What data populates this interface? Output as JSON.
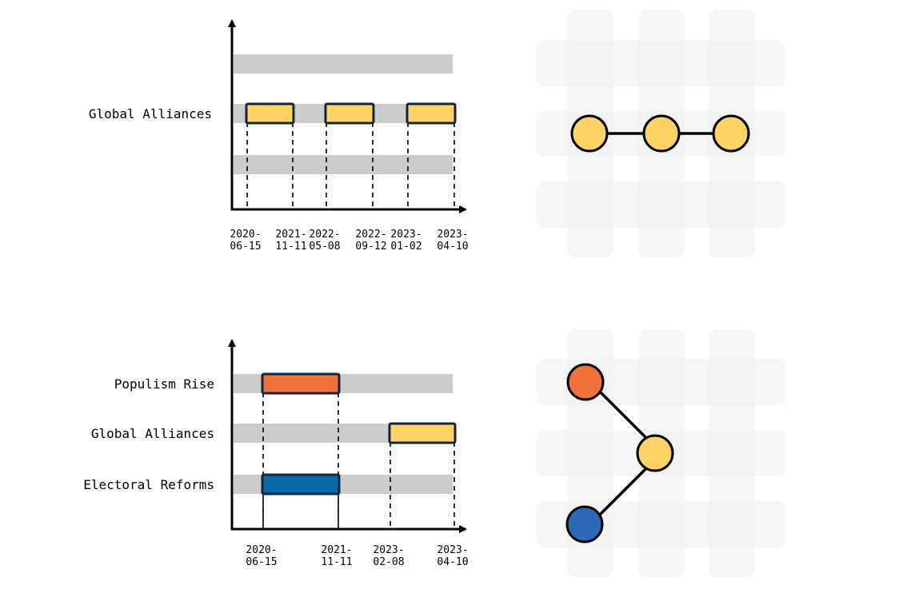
{
  "colors": {
    "track": "#cccccc",
    "axis": "#000000",
    "outline": "#15243d",
    "grid_band": "#f0f0f0",
    "global_alliances": "#ffd366",
    "populism_rise": "#f0713a",
    "electoral_reforms": "#0a6aa8",
    "electoral_reforms_node": "#2e69b8"
  },
  "chart_data": [
    {
      "type": "gantt",
      "title": "",
      "rows": [
        "",
        "Global Alliances",
        ""
      ],
      "bars": [
        {
          "row": "Global Alliances",
          "start": "2020-06-15",
          "end": "2021-11-11",
          "color": "#ffd366"
        },
        {
          "row": "Global Alliances",
          "start": "2022-05-08",
          "end": "2022-09-12",
          "color": "#ffd366"
        },
        {
          "row": "Global Alliances",
          "start": "2023-01-02",
          "end": "2023-04-10",
          "color": "#ffd366"
        }
      ],
      "ticks": [
        {
          "line1": "2020-",
          "line2": "06-15"
        },
        {
          "line1": "2021-",
          "line2": "11-11"
        },
        {
          "line1": "2022-",
          "line2": "05-08"
        },
        {
          "line1": "2022-",
          "line2": "09-12"
        },
        {
          "line1": "2023-",
          "line2": "01-02"
        },
        {
          "line1": "2023-",
          "line2": "04-10"
        }
      ]
    },
    {
      "type": "gantt",
      "title": "",
      "rows": [
        "Populism Rise",
        "Global Alliances",
        "Electoral Reforms"
      ],
      "bars": [
        {
          "row": "Populism Rise",
          "start": "2020-06-15",
          "end": "2021-11-11",
          "color": "#f0713a"
        },
        {
          "row": "Global Alliances",
          "start": "2023-02-08",
          "end": "2023-04-10",
          "color": "#ffd366"
        },
        {
          "row": "Electoral Reforms",
          "start": "2020-06-15",
          "end": "2021-11-11",
          "color": "#0a6aa8"
        }
      ],
      "ticks": [
        {
          "line1": "2020-",
          "line2": "06-15"
        },
        {
          "line1": "2021-",
          "line2": "11-11"
        },
        {
          "line1": "2023-",
          "line2": "02-08"
        },
        {
          "line1": "2023-",
          "line2": "04-10"
        }
      ]
    }
  ],
  "node_graphs": [
    {
      "grid": {
        "columns": 3,
        "rows": 3
      },
      "nodes": [
        {
          "id": "a",
          "col": 0,
          "row": 1,
          "color": "#ffd366"
        },
        {
          "id": "b",
          "col": 1,
          "row": 1,
          "color": "#ffd366"
        },
        {
          "id": "c",
          "col": 2,
          "row": 1,
          "color": "#ffd366"
        }
      ],
      "edges": [
        [
          "a",
          "b"
        ],
        [
          "b",
          "c"
        ]
      ]
    },
    {
      "grid": {
        "columns": 3,
        "rows": 3
      },
      "nodes": [
        {
          "id": "populism",
          "col": 0,
          "row": 0,
          "color": "#f0713a"
        },
        {
          "id": "alliances",
          "col": 1,
          "row": 1,
          "color": "#ffd366"
        },
        {
          "id": "electoral",
          "col": 0,
          "row": 2,
          "color": "#2e69b8"
        }
      ],
      "edges": [
        [
          "populism",
          "alliances"
        ],
        [
          "alliances",
          "electoral"
        ]
      ]
    }
  ]
}
